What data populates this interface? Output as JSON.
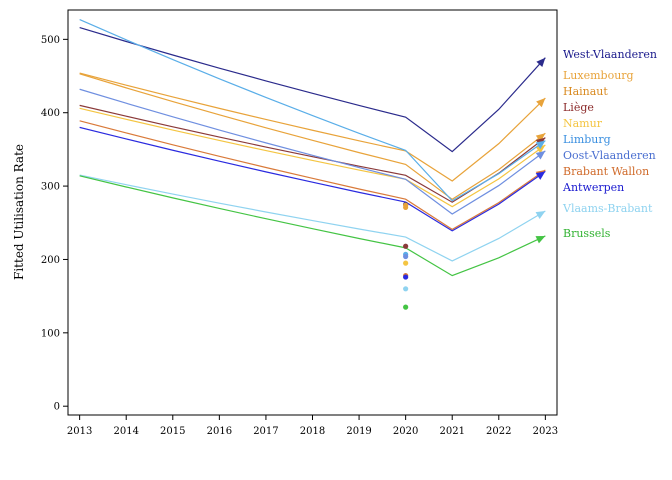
{
  "chart_data": {
    "type": "line",
    "ylabel": "Fitted Utilisation Rate",
    "xlabel": "",
    "x_ticks": [
      "2013",
      "2014",
      "2015",
      "2016",
      "2017",
      "2018",
      "2019",
      "2020",
      "2021",
      "2022",
      "2023"
    ],
    "y_ticks": [
      "0",
      "100",
      "200",
      "300",
      "400",
      "500"
    ],
    "xlim": [
      2012.75,
      2023.25
    ],
    "ylim": [
      -12,
      540
    ],
    "grid": false,
    "legend_position": "right",
    "series": [
      {
        "name": "West-Vlaanderen",
        "color": "#2b2b8c",
        "start": 516,
        "trough": 347,
        "end": 475,
        "point2020": 275
      },
      {
        "name": "Luxembourg",
        "color": "#e8a33a",
        "start": 454,
        "trough": 307,
        "end": 420,
        "point2020": 274
      },
      {
        "name": "Hainaut",
        "color": "#e8a33a",
        "start": 453,
        "trough": 282,
        "end": 372,
        "point2020": 271
      },
      {
        "name": "Liège",
        "color": "#8b3a3a",
        "start": 410,
        "trough": 278,
        "end": 366,
        "point2020": 218
      },
      {
        "name": "Namur",
        "color": "#f4c542",
        "start": 406,
        "trough": 272,
        "end": 356,
        "point2020": 195
      },
      {
        "name": "Limburg",
        "color": "#5aaee8",
        "start": 527,
        "trough": 280,
        "end": 362,
        "point2020": 207
      },
      {
        "name": "Oost-Vlaanderen",
        "color": "#6f8fe0",
        "start": 432,
        "trough": 262,
        "end": 348,
        "point2020": 204
      },
      {
        "name": "Brabant Wallon",
        "color": "#d97a3a",
        "start": 389,
        "trough": 241,
        "end": 322,
        "point2020": 178
      },
      {
        "name": "Antwerpen",
        "color": "#2a2adf",
        "start": 380,
        "trough": 239,
        "end": 320,
        "point2020": 176
      },
      {
        "name": "Vlaams-Brabant",
        "color": "#8fd3f0",
        "start": 315,
        "trough": 198,
        "end": 266,
        "point2020": 160
      },
      {
        "name": "Brussels",
        "color": "#44c444",
        "start": 314,
        "trough": 178,
        "end": 232,
        "point2020": 135
      }
    ],
    "legend_label_colors": [
      "#1a1a8c",
      "#e8a33a",
      "#d98a20",
      "#8b2a2a",
      "#f4c542",
      "#3a8fe0",
      "#4a6fd0",
      "#d06a2a",
      "#1a1acf",
      "#8fd3f0",
      "#33b333"
    ]
  }
}
